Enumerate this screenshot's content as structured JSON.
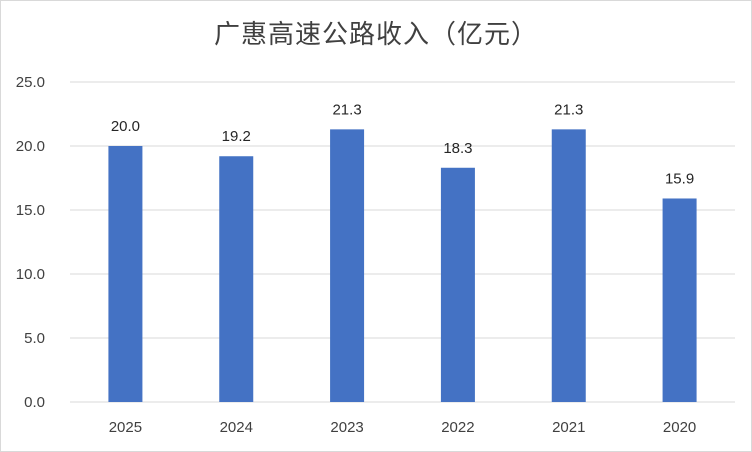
{
  "chart_data": {
    "type": "bar",
    "title": "广惠高速公路收入（亿元）",
    "categories": [
      "2025",
      "2024",
      "2023",
      "2022",
      "2021",
      "2020"
    ],
    "values": [
      20.0,
      19.2,
      21.3,
      18.3,
      21.3,
      15.9
    ],
    "value_labels": [
      "20.0",
      "19.2",
      "21.3",
      "18.3",
      "21.3",
      "15.9"
    ],
    "yticks": [
      "0.0",
      "5.0",
      "10.0",
      "15.0",
      "20.0",
      "25.0"
    ],
    "ylim": [
      0,
      25
    ],
    "xlabel": "",
    "ylabel": "",
    "grid": true,
    "bar_color": "#4472c4",
    "grid_color": "#d9d9d9",
    "legend": "none"
  }
}
